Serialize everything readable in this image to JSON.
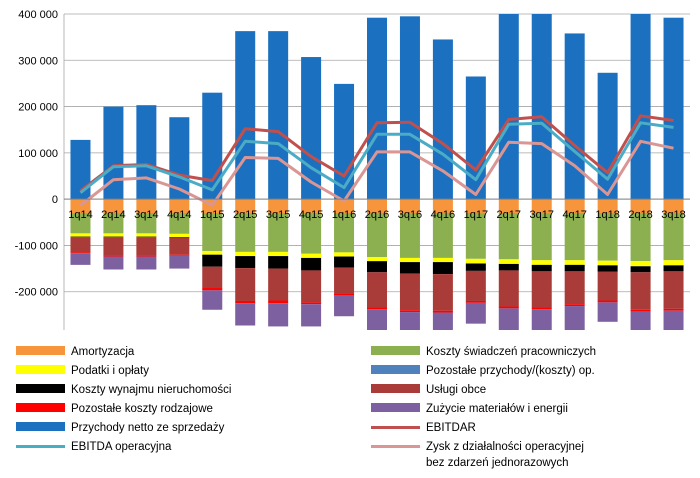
{
  "chart_data": {
    "type": "bar",
    "stacked": true,
    "categories": [
      "1q14",
      "2q14",
      "3q14",
      "4q14",
      "1q15",
      "2q15",
      "3q15",
      "4q15",
      "1q16",
      "2q16",
      "3q16",
      "4q16",
      "1q17",
      "2q17",
      "3q17",
      "4q17",
      "1q18",
      "2q18",
      "3q18"
    ],
    "ylim": [
      -300000,
      400000
    ],
    "yticks": [
      400000,
      300000,
      200000,
      100000,
      0,
      -100000,
      -200000,
      -300000
    ],
    "ytick_labels": [
      "400 000",
      "300 000",
      "200 000",
      "100 000",
      "0",
      "-100 000",
      "-200 000",
      "-300 000"
    ],
    "grid": true,
    "legend_position": "bottom",
    "bar_series": [
      {
        "name": "Przychody netto ze sprzedaży",
        "color": "#1b70c0",
        "values": [
          128000,
          200000,
          203000,
          177000,
          230000,
          363000,
          363000,
          307000,
          249000,
          392000,
          395000,
          345000,
          265000,
          400000,
          400000,
          358000,
          273000,
          400000,
          392000
        ]
      },
      {
        "name": "Amortyzacja",
        "color": "#f7953c",
        "values": [
          -30000,
          -30000,
          -30000,
          -30000,
          -30000,
          -30000,
          -30000,
          -30000,
          -30000,
          -30000,
          -30000,
          -30000,
          -30000,
          -30000,
          -30000,
          -30000,
          -30000,
          -30000,
          -30000
        ]
      },
      {
        "name": "Koszty świadczeń pracowniczych",
        "color": "#8cb050",
        "values": [
          -44000,
          -44000,
          -44000,
          -45000,
          -82000,
          -84000,
          -84000,
          -88000,
          -85000,
          -95000,
          -97000,
          -97000,
          -99000,
          -100000,
          -102000,
          -102000,
          -103000,
          -104000,
          -102000
        ]
      },
      {
        "name": "Podatki i opłaty",
        "color": "#ffff00",
        "values": [
          -7000,
          -7000,
          -7000,
          -7000,
          -8000,
          -9000,
          -9000,
          -9000,
          -9000,
          -9000,
          -9000,
          -9000,
          -10000,
          -10000,
          -10000,
          -10000,
          -10000,
          -11000,
          -11000
        ]
      },
      {
        "name": "Koszty wynajmu nieruchomości",
        "color": "#000000",
        "values": [
          -1000,
          -1000,
          -1000,
          -1000,
          -26000,
          -26000,
          -27000,
          -27000,
          -24000,
          -24000,
          -25000,
          -26000,
          -16000,
          -14000,
          -14000,
          -14000,
          -14000,
          -13000,
          -13000
        ]
      },
      {
        "name": "Usługi obce",
        "color": "#a93b38",
        "values": [
          -33000,
          -40000,
          -40000,
          -37000,
          -46000,
          -71000,
          -69000,
          -69000,
          -56000,
          -76000,
          -79000,
          -79000,
          -65000,
          -78000,
          -78000,
          -71000,
          -62000,
          -81000,
          -81000
        ]
      },
      {
        "name": "Pozostałe koszty rodzajowe",
        "color": "#ff0000",
        "values": [
          -2000,
          -2000,
          -2000,
          -2000,
          -5000,
          -5000,
          -6000,
          -4000,
          -4000,
          -4000,
          -4000,
          -4000,
          -4000,
          -4000,
          -4000,
          -4000,
          -4000,
          -4000,
          -4000
        ]
      },
      {
        "name": "Zużycie materiałów i energii",
        "color": "#7d60a0",
        "values": [
          -25000,
          -28000,
          -28000,
          -28000,
          -42000,
          -48000,
          -50000,
          -48000,
          -45000,
          -52000,
          -52000,
          -55000,
          -45000,
          -50000,
          -52000,
          -52000,
          -42000,
          -47000,
          -42000
        ]
      },
      {
        "name": "Pozostałe przychody/(koszty) op.",
        "color": "#4f81bd",
        "values": [
          0,
          0,
          0,
          0,
          0,
          0,
          0,
          0,
          0,
          0,
          0,
          0,
          0,
          0,
          0,
          0,
          0,
          0,
          0
        ]
      }
    ],
    "line_series": [
      {
        "name": "EBITDAR",
        "color": "#c0504d",
        "values": [
          18000,
          72000,
          75000,
          52000,
          40000,
          152000,
          146000,
          92000,
          50000,
          165000,
          166000,
          120000,
          63000,
          172000,
          178000,
          116000,
          57000,
          180000,
          170000
        ]
      },
      {
        "name": "EBITDA operacyjna",
        "color": "#4bacc6",
        "values": [
          14000,
          70000,
          72000,
          48000,
          20000,
          125000,
          120000,
          68000,
          25000,
          140000,
          140000,
          97000,
          42000,
          162000,
          164000,
          103000,
          43000,
          165000,
          155000
        ]
      },
      {
        "name": "Zysk z działalności operacyjnej\nbez zdarzeń jednorazowych",
        "color": "#d99694",
        "values": [
          -14000,
          42000,
          46000,
          22000,
          -13000,
          90000,
          88000,
          37000,
          -4000,
          102000,
          102000,
          61000,
          10000,
          123000,
          120000,
          72000,
          10000,
          125000,
          110000
        ]
      }
    ]
  },
  "legend": [
    {
      "label": "Amortyzacja",
      "color": "#f7953c",
      "kind": "box"
    },
    {
      "label": "Koszty świadczeń pracowniczych",
      "color": "#8cb050",
      "kind": "box"
    },
    {
      "label": "Podatki i opłaty",
      "color": "#ffff00",
      "kind": "box"
    },
    {
      "label": "Pozostałe przychody/(koszty) op.",
      "color": "#4f81bd",
      "kind": "box"
    },
    {
      "label": "Koszty wynajmu nieruchomości",
      "color": "#000000",
      "kind": "box"
    },
    {
      "label": "Usługi obce",
      "color": "#a93b38",
      "kind": "box"
    },
    {
      "label": "Pozostałe koszty rodzajowe",
      "color": "#ff0000",
      "kind": "box"
    },
    {
      "label": "Zużycie materiałów i energii",
      "color": "#7d60a0",
      "kind": "box"
    },
    {
      "label": "Przychody netto ze sprzedaży",
      "color": "#1b70c0",
      "kind": "box"
    },
    {
      "label": "EBITDAR",
      "color": "#c0504d",
      "kind": "line"
    },
    {
      "label": "EBITDA operacyjna",
      "color": "#4bacc6",
      "kind": "line"
    },
    {
      "label": "Zysk z działalności operacyjnej\nbez zdarzeń jednorazowych",
      "color": "#d99694",
      "kind": "line"
    }
  ]
}
